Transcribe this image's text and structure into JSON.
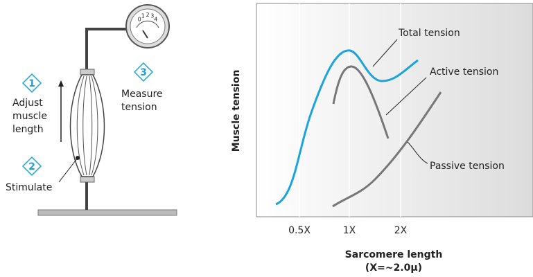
{
  "apparatus": {
    "gauge_numbers": [
      "0",
      "1",
      "2",
      "3",
      "4"
    ],
    "steps": [
      {
        "number": "1",
        "label": [
          "Adjust",
          "muscle",
          "length"
        ]
      },
      {
        "number": "2",
        "label": [
          "Stimulate"
        ]
      },
      {
        "number": "3",
        "label": [
          "Measure",
          "tension"
        ]
      }
    ]
  },
  "chart": {
    "y_label": "Muscle tension",
    "x_label": [
      "Sarcomere length",
      "(X=~2.0μ)"
    ],
    "x_ticks": [
      "0.5X",
      "1X",
      "2X"
    ],
    "curve_labels": [
      "Total tension",
      "Active tension",
      "Passive tension"
    ]
  }
}
